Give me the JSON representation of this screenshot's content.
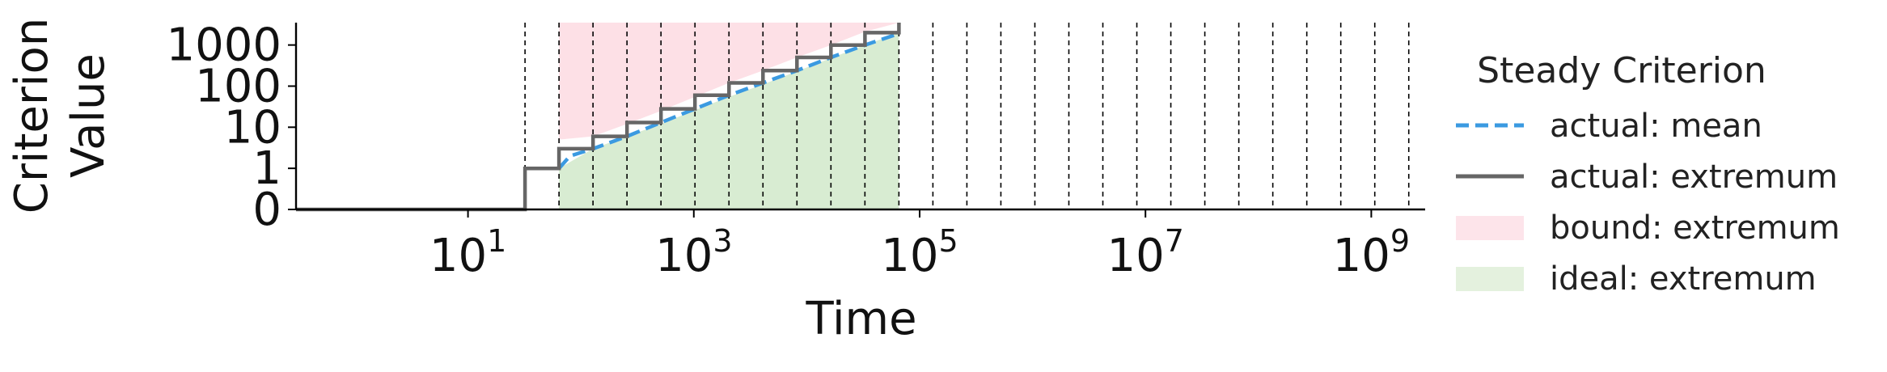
{
  "chart_data": {
    "type": "line",
    "xlabel": "Time",
    "ylabel_line1": "Criterion",
    "ylabel_line2": "Value",
    "x_scale": "log",
    "y_scale": "symlog",
    "xlim": [
      0.3,
      3000000000.0
    ],
    "ylim": [
      0,
      3500
    ],
    "x_ticks": [
      {
        "value": 10,
        "base": "10",
        "exp": "1"
      },
      {
        "value": 1000,
        "base": "10",
        "exp": "3"
      },
      {
        "value": 100000,
        "base": "10",
        "exp": "5"
      },
      {
        "value": 10000000,
        "base": "10",
        "exp": "7"
      },
      {
        "value": 1000000000,
        "base": "10",
        "exp": "9"
      }
    ],
    "y_ticks": [
      {
        "value": 0,
        "label": "0"
      },
      {
        "value": 1,
        "label": "1"
      },
      {
        "value": 10,
        "label": "10"
      },
      {
        "value": 100,
        "label": "100"
      },
      {
        "value": 1000,
        "label": "1000"
      }
    ],
    "vlines": [
      32,
      64,
      128,
      256,
      512,
      1024,
      2048,
      4096,
      8192,
      16384,
      32768,
      65536,
      131072,
      262144,
      524288,
      1048576,
      2097152,
      4194304,
      8388608,
      16777216,
      33554432,
      67108864,
      134217728,
      268435456,
      536870912,
      1073741824,
      2147483648
    ],
    "legend_title": "Steady Criterion",
    "legend": [
      {
        "label": "actual: mean",
        "style": "dashed-line",
        "color": "#3b9ae1"
      },
      {
        "label": "actual: extremum",
        "style": "solid-line",
        "color": "#666666"
      },
      {
        "label": "bound: extremum",
        "style": "patch",
        "color": "#fde4ea"
      },
      {
        "label": "ideal: extremum",
        "style": "patch",
        "color": "#e4f1de"
      }
    ],
    "colors": {
      "bound_fill": "#fde0e6",
      "ideal_fill": "#d8ecd2",
      "mean_line": "#3b9ae1",
      "extremum_line": "#666666"
    },
    "series": [
      {
        "name": "actual: extremum",
        "x": [
          0.3,
          32,
          32,
          64,
          64,
          128,
          128,
          256,
          256,
          512,
          512,
          1024,
          1024,
          2048,
          2048,
          4096,
          4096,
          8192,
          8192,
          16384,
          16384,
          32768,
          32768,
          65536,
          65536
        ],
        "y": [
          0,
          0,
          1,
          1,
          3,
          3,
          6,
          6,
          13,
          13,
          28,
          28,
          60,
          60,
          120,
          120,
          240,
          240,
          500,
          500,
          1000,
          1000,
          2000,
          2000,
          3500
        ]
      },
      {
        "name": "actual: mean",
        "x": [
          64,
          80,
          128,
          256,
          512,
          1024,
          2048,
          4096,
          8192,
          16384,
          32768,
          65536
        ],
        "y": [
          1,
          2,
          3,
          6,
          13,
          28,
          60,
          120,
          240,
          500,
          1000,
          1900
        ]
      },
      {
        "name": "bound: extremum",
        "x": [
          0.3,
          32,
          32,
          64,
          64,
          128,
          256,
          512,
          1024,
          2048,
          4096,
          8192,
          16384,
          32768,
          65536
        ],
        "y": [
          3500,
          3500,
          3500,
          3500,
          5,
          6,
          12,
          25,
          55,
          120,
          240,
          500,
          1000,
          2100,
          3500
        ]
      },
      {
        "name": "ideal: extremum",
        "x": [
          64,
          128,
          256,
          512,
          1024,
          2048,
          4096,
          8192,
          16384,
          32768,
          65536
        ],
        "y": [
          1,
          3,
          6,
          12,
          26,
          55,
          110,
          230,
          480,
          1000,
          2000
        ]
      }
    ]
  }
}
